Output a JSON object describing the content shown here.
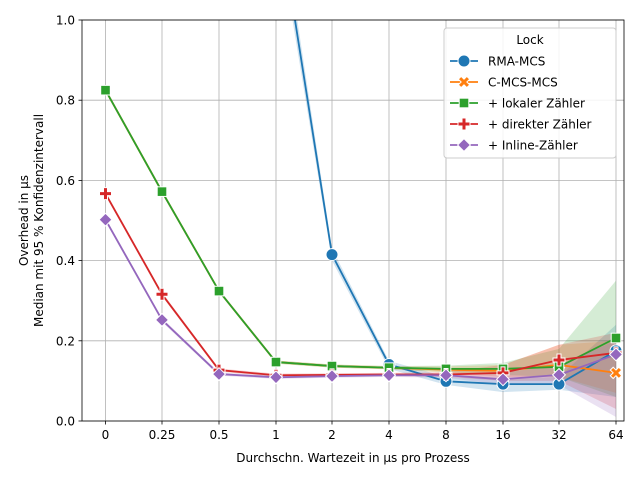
{
  "chart_data": {
    "type": "line",
    "title": "",
    "xlabel": "Durchschn. Wartezeit in µs pro Prozess",
    "ylabel_lines": [
      "Overhead in µs",
      "Median mit 95 % Konfidenzintervall"
    ],
    "x_categories": [
      "0",
      "0.25",
      "0.5",
      "1",
      "2",
      "4",
      "8",
      "16",
      "32",
      "64"
    ],
    "x_positions": [
      0,
      0.25,
      0.5,
      1,
      2,
      4,
      8,
      16,
      32,
      64
    ],
    "ylim": [
      0,
      1.0
    ],
    "yticks": [
      "0.0",
      "0.2",
      "0.4",
      "0.6",
      "0.8",
      "1.0"
    ],
    "ytick_values": [
      0,
      0.2,
      0.4,
      0.6,
      0.8,
      1.0
    ],
    "grid": true,
    "legend": {
      "title": "Lock",
      "placement": "top-right"
    },
    "series": [
      {
        "name": "RMA-MCS",
        "color": "#1f77b4",
        "marker": "circle",
        "x": [
          1,
          2,
          4,
          8,
          16,
          32,
          64
        ],
        "values": [
          1.3,
          0.415,
          0.141,
          0.099,
          0.092,
          0.092,
          0.175
        ],
        "ci_low": [
          1.25,
          0.4,
          0.13,
          0.09,
          0.072,
          0.078,
          0.06
        ],
        "ci_high": [
          1.35,
          0.43,
          0.15,
          0.11,
          0.105,
          0.11,
          0.24
        ],
        "marker_x": [
          2,
          4,
          8,
          16,
          32,
          64
        ]
      },
      {
        "name": "C-MCS-MCS",
        "color": "#ff7f0e",
        "marker": "x",
        "x": [
          0,
          0.25,
          0.5,
          1,
          2,
          4,
          8,
          16,
          32,
          64
        ],
        "values": [
          0.825,
          0.572,
          0.324,
          0.147,
          0.137,
          0.133,
          0.128,
          0.125,
          0.14,
          0.12
        ],
        "ci_low": [
          0.82,
          0.567,
          0.32,
          0.143,
          0.133,
          0.129,
          0.12,
          0.11,
          0.11,
          0.07
        ],
        "ci_high": [
          0.83,
          0.577,
          0.328,
          0.151,
          0.141,
          0.137,
          0.136,
          0.14,
          0.19,
          0.2
        ],
        "marker_x": [
          32,
          64
        ]
      },
      {
        "name": "+ lokaler Zähler",
        "color": "#2ca02c",
        "marker": "square",
        "x": [
          0,
          0.25,
          0.5,
          1,
          2,
          4,
          8,
          16,
          32,
          64
        ],
        "values": [
          0.825,
          0.572,
          0.324,
          0.147,
          0.137,
          0.133,
          0.13,
          0.13,
          0.135,
          0.207
        ],
        "ci_low": [
          0.82,
          0.567,
          0.32,
          0.143,
          0.133,
          0.129,
          0.122,
          0.115,
          0.11,
          0.06
        ],
        "ci_high": [
          0.83,
          0.577,
          0.328,
          0.151,
          0.141,
          0.137,
          0.138,
          0.145,
          0.18,
          0.35
        ],
        "marker_x": [
          0,
          0.25,
          0.5,
          1,
          2,
          4,
          8,
          16,
          32,
          64
        ]
      },
      {
        "name": "+ direkter Zähler",
        "color": "#d62728",
        "marker": "plus",
        "x": [
          0,
          0.25,
          0.5,
          1,
          2,
          4,
          8,
          16,
          32,
          64
        ],
        "values": [
          0.567,
          0.316,
          0.127,
          0.114,
          0.115,
          0.116,
          0.116,
          0.12,
          0.152,
          0.17
        ],
        "ci_low": [
          0.562,
          0.311,
          0.123,
          0.11,
          0.111,
          0.112,
          0.11,
          0.1,
          0.1,
          0.03
        ],
        "ci_high": [
          0.572,
          0.321,
          0.131,
          0.118,
          0.119,
          0.12,
          0.122,
          0.14,
          0.19,
          0.22
        ],
        "marker_x": [
          0,
          0.25,
          0.5,
          1,
          2,
          4,
          8,
          16,
          32,
          64
        ]
      },
      {
        "name": "+ Inline-Zähler",
        "color": "#9467bd",
        "marker": "diamond",
        "x": [
          0,
          0.25,
          0.5,
          1,
          2,
          4,
          8,
          16,
          32,
          64
        ],
        "values": [
          0.502,
          0.252,
          0.117,
          0.109,
          0.112,
          0.114,
          0.114,
          0.104,
          0.115,
          0.166
        ],
        "ci_low": [
          0.497,
          0.247,
          0.113,
          0.105,
          0.108,
          0.11,
          0.108,
          0.09,
          0.09,
          0.01
        ],
        "ci_high": [
          0.507,
          0.257,
          0.121,
          0.113,
          0.116,
          0.118,
          0.12,
          0.12,
          0.14,
          0.2
        ],
        "marker_x": [
          0,
          0.25,
          0.5,
          1,
          2,
          4,
          8,
          16,
          32,
          64
        ]
      }
    ]
  }
}
